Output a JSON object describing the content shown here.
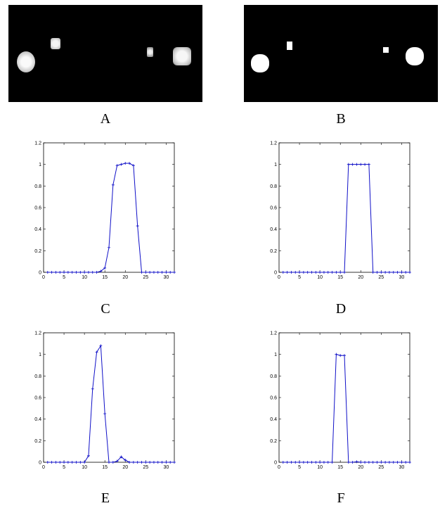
{
  "panels": {
    "a": {
      "label": "A"
    },
    "b": {
      "label": "B"
    },
    "c": {
      "label": "C"
    },
    "d": {
      "label": "D"
    },
    "e": {
      "label": "E"
    },
    "f": {
      "label": "F"
    }
  },
  "colors": {
    "line": "#1010c8",
    "axis": "#000000",
    "image_background": "#000000"
  },
  "chart_data": [
    {
      "panel": "C",
      "type": "line",
      "xlim": [
        0,
        32
      ],
      "ylim": [
        0,
        1.2
      ],
      "xticks": [
        0,
        5,
        10,
        15,
        20,
        25,
        30
      ],
      "xtick_labels": [
        "0",
        "5",
        "10",
        "15",
        "20",
        "25",
        "30"
      ],
      "yticks": [
        0,
        0.2,
        0.4,
        0.6,
        0.8,
        1,
        1.2
      ],
      "ytick_labels": [
        "0",
        "0.2",
        "0.4",
        "0.6",
        "0.8",
        "1",
        "1.2"
      ],
      "grid": false,
      "marker": "+",
      "series": [
        {
          "x": [
            1,
            2,
            3,
            4,
            5,
            6,
            7,
            8,
            9,
            10,
            11,
            12,
            13,
            14,
            15,
            16,
            17,
            18,
            19,
            20,
            21,
            22,
            23,
            24,
            25,
            26,
            27,
            28,
            29,
            30,
            31,
            32
          ],
          "y": [
            0,
            0,
            0,
            0,
            0,
            0,
            0,
            0,
            0,
            0,
            0,
            0,
            0,
            0.01,
            0.04,
            0.23,
            0.81,
            0.99,
            1.0,
            1.01,
            1.01,
            0.99,
            0.43,
            0,
            0,
            0,
            0,
            0,
            0,
            0,
            0,
            0
          ]
        }
      ]
    },
    {
      "panel": "D",
      "type": "line",
      "xlim": [
        0,
        32
      ],
      "ylim": [
        0,
        1.2
      ],
      "xticks": [
        0,
        5,
        10,
        15,
        20,
        25,
        30
      ],
      "xtick_labels": [
        "0",
        "5",
        "10",
        "15",
        "20",
        "25",
        "30"
      ],
      "yticks": [
        0,
        0.2,
        0.4,
        0.6,
        0.8,
        1,
        1.2
      ],
      "ytick_labels": [
        "0",
        "0.2",
        "0.4",
        "0.6",
        "0.8",
        "1",
        "1.2"
      ],
      "grid": false,
      "marker": "+",
      "series": [
        {
          "x": [
            1,
            2,
            3,
            4,
            5,
            6,
            7,
            8,
            9,
            10,
            11,
            12,
            13,
            14,
            15,
            16,
            17,
            18,
            19,
            20,
            21,
            22,
            23,
            24,
            25,
            26,
            27,
            28,
            29,
            30,
            31,
            32
          ],
          "y": [
            0,
            0,
            0,
            0,
            0,
            0,
            0,
            0,
            0,
            0,
            0,
            0,
            0,
            0,
            0,
            0,
            1,
            1,
            1,
            1,
            1,
            1,
            0,
            0,
            0,
            0,
            0,
            0,
            0,
            0,
            0,
            0
          ]
        }
      ]
    },
    {
      "panel": "E",
      "type": "line",
      "xlim": [
        0,
        32
      ],
      "ylim": [
        0,
        1.2
      ],
      "xticks": [
        0,
        5,
        10,
        15,
        20,
        25,
        30
      ],
      "xtick_labels": [
        "0",
        "5",
        "10",
        "15",
        "20",
        "25",
        "30"
      ],
      "yticks": [
        0,
        0.2,
        0.4,
        0.6,
        0.8,
        1,
        1.2
      ],
      "ytick_labels": [
        "0",
        "0.2",
        "0.4",
        "0.6",
        "0.8",
        "1",
        "1.2"
      ],
      "grid": false,
      "marker": "+",
      "series": [
        {
          "x": [
            1,
            2,
            3,
            4,
            5,
            6,
            7,
            8,
            9,
            10,
            11,
            12,
            13,
            14,
            15,
            16,
            17,
            18,
            19,
            20,
            21,
            22,
            23,
            24,
            25,
            26,
            27,
            28,
            29,
            30,
            31,
            32
          ],
          "y": [
            0,
            0,
            0,
            0,
            0,
            0,
            0,
            0,
            0,
            0,
            0.06,
            0.68,
            1.02,
            1.08,
            0.45,
            0,
            0,
            0.01,
            0.05,
            0.02,
            0,
            0,
            0,
            0,
            0,
            0,
            0,
            0,
            0,
            0,
            0,
            0
          ]
        }
      ]
    },
    {
      "panel": "F",
      "type": "line",
      "xlim": [
        0,
        32
      ],
      "ylim": [
        0,
        1.2
      ],
      "xticks": [
        0,
        5,
        10,
        15,
        20,
        25,
        30
      ],
      "xtick_labels": [
        "0",
        "5",
        "10",
        "15",
        "20",
        "25",
        "30"
      ],
      "yticks": [
        0,
        0.2,
        0.4,
        0.6,
        0.8,
        1,
        1.2
      ],
      "ytick_labels": [
        "0",
        "0.2",
        "0.4",
        "0.6",
        "0.8",
        "1",
        "1.2"
      ],
      "grid": false,
      "marker": "+",
      "series": [
        {
          "x": [
            1,
            2,
            3,
            4,
            5,
            6,
            7,
            8,
            9,
            10,
            11,
            12,
            13,
            14,
            15,
            16,
            17,
            18,
            19,
            20,
            21,
            22,
            23,
            24,
            25,
            26,
            27,
            28,
            29,
            30,
            31,
            32
          ],
          "y": [
            0,
            0,
            0,
            0,
            0,
            0,
            0,
            0,
            0,
            0,
            0,
            0,
            0,
            1.0,
            0.99,
            0.99,
            0,
            0,
            0.005,
            0,
            0,
            0,
            0,
            0,
            0,
            0,
            0,
            0,
            0,
            0,
            0,
            0
          ]
        }
      ]
    }
  ]
}
